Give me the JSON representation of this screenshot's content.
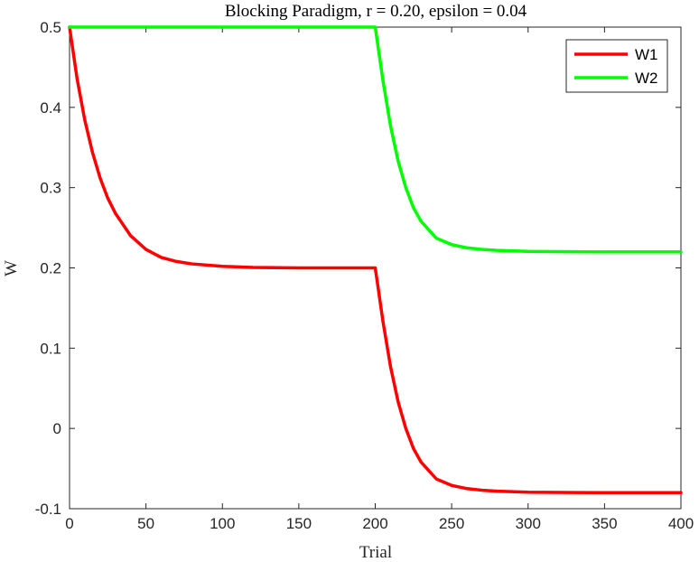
{
  "chart_data": {
    "type": "line",
    "title": "Blocking Paradigm, r = 0.20, epsilon = 0.04",
    "xlabel": "Trial",
    "ylabel": "W",
    "xlim": [
      0,
      400
    ],
    "ylim": [
      -0.1,
      0.5
    ],
    "xticks": [
      0,
      50,
      100,
      150,
      200,
      250,
      300,
      350,
      400
    ],
    "yticks": [
      -0.1,
      0,
      0.1,
      0.2,
      0.3,
      0.4,
      0.5
    ],
    "xtick_labels": [
      "0",
      "50",
      "100",
      "150",
      "200",
      "250",
      "300",
      "350",
      "400"
    ],
    "ytick_labels": [
      "-0.1",
      "0",
      "0.1",
      "0.2",
      "0.3",
      "0.4",
      "0.5"
    ],
    "grid": false,
    "legend_position": "top-right",
    "x": [
      0,
      5,
      10,
      15,
      20,
      25,
      30,
      40,
      50,
      60,
      70,
      80,
      100,
      120,
      150,
      200,
      202,
      205,
      210,
      215,
      220,
      225,
      230,
      240,
      250,
      260,
      270,
      280,
      300,
      320,
      350,
      400
    ],
    "series": [
      {
        "name": "W1",
        "color": "#ff0000",
        "values": [
          0.5,
          0.435,
          0.384,
          0.344,
          0.312,
          0.287,
          0.268,
          0.24,
          0.223,
          0.213,
          0.208,
          0.205,
          0.202,
          0.2005,
          0.2,
          0.2,
          0.174,
          0.134,
          0.077,
          0.033,
          0.0,
          -0.025,
          -0.042,
          -0.063,
          -0.071,
          -0.075,
          -0.077,
          -0.0782,
          -0.0795,
          -0.0798,
          -0.08,
          -0.08
        ]
      },
      {
        "name": "W2",
        "color": "#00ff00",
        "values": [
          0.5,
          0.5,
          0.5,
          0.5,
          0.5,
          0.5,
          0.5,
          0.5,
          0.5,
          0.5,
          0.5,
          0.5,
          0.5,
          0.5,
          0.5,
          0.5,
          0.474,
          0.434,
          0.377,
          0.333,
          0.3,
          0.275,
          0.258,
          0.237,
          0.229,
          0.225,
          0.223,
          0.2218,
          0.2205,
          0.2202,
          0.22,
          0.22
        ]
      }
    ]
  }
}
